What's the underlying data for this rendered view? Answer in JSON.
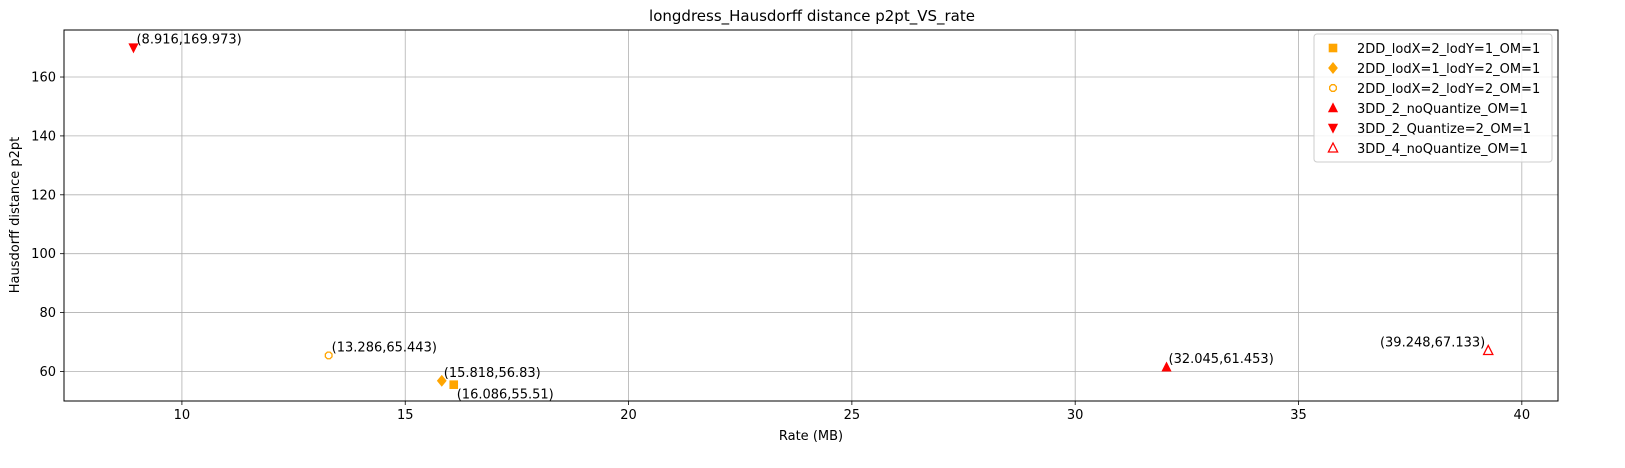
{
  "chart_data": {
    "type": "scatter",
    "title": "longdress_Hausdorff distance p2pt_VS_rate",
    "xlabel": "Rate (MB)",
    "ylabel": "Hausdorff distance p2pt",
    "xlim": [
      7.36,
      40.81
    ],
    "ylim": [
      49.97,
      175.97
    ],
    "xticks": [
      10,
      15,
      20,
      25,
      30,
      35,
      40
    ],
    "yticks": [
      60,
      80,
      100,
      120,
      140,
      160
    ],
    "grid": true,
    "legend_position": "top-right",
    "series": [
      {
        "name": "2DD_lodX=2_lodY=1_OM=1",
        "marker": "square",
        "color": "#ffa500",
        "fill": true,
        "points": [
          {
            "x": 16.086,
            "y": 55.51,
            "label": "(16.086,55.51)"
          }
        ]
      },
      {
        "name": "2DD_lodX=1_lodY=2_OM=1",
        "marker": "diamond",
        "color": "#ffa500",
        "fill": true,
        "points": [
          {
            "x": 15.818,
            "y": 56.83,
            "label": "(15.818,56.83)"
          }
        ]
      },
      {
        "name": "2DD_lodX=2_lodY=2_OM=1",
        "marker": "octagon",
        "color": "#ffa500",
        "fill": false,
        "points": [
          {
            "x": 13.286,
            "y": 65.443,
            "label": "(13.286,65.443)"
          }
        ]
      },
      {
        "name": "3DD_2_noQuantize_OM=1",
        "marker": "triangle-up",
        "color": "#ff0000",
        "fill": true,
        "points": [
          {
            "x": 32.045,
            "y": 61.453,
            "label": "(32.045,61.453)"
          }
        ]
      },
      {
        "name": "3DD_2_Quantize=2_OM=1",
        "marker": "triangle-down",
        "color": "#ff0000",
        "fill": true,
        "points": [
          {
            "x": 8.916,
            "y": 169.973,
            "label": "(8.916,169.973)"
          }
        ]
      },
      {
        "name": "3DD_4_noQuantize_OM=1",
        "marker": "triangle-up",
        "color": "#ff0000",
        "fill": false,
        "points": [
          {
            "x": 39.248,
            "y": 67.133,
            "label": "(39.248,67.133)"
          }
        ]
      }
    ]
  }
}
